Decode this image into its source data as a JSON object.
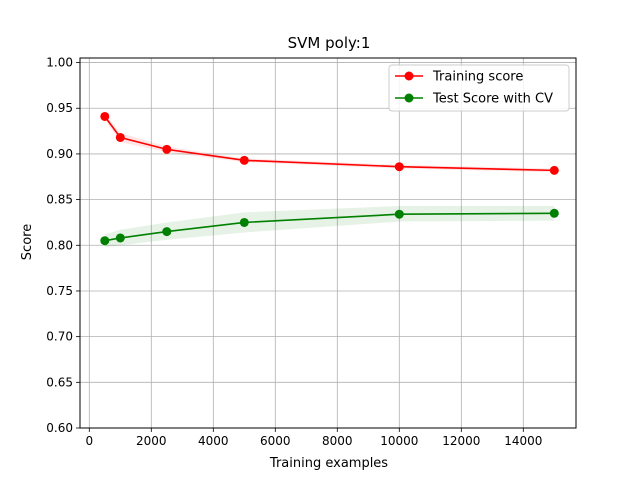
{
  "chart_data": {
    "type": "line",
    "title": "SVM poly:1",
    "xlabel": "Training examples",
    "ylabel": "Score",
    "xlim": [
      -300,
      15700
    ],
    "ylim": [
      0.6,
      1.005
    ],
    "xticks": [
      0,
      2000,
      4000,
      6000,
      8000,
      10000,
      12000,
      14000
    ],
    "yticks": [
      0.6,
      0.65,
      0.7,
      0.75,
      0.8,
      0.85,
      0.9,
      0.95,
      1.0
    ],
    "xtick_labels": [
      "0",
      "2000",
      "4000",
      "6000",
      "8000",
      "10000",
      "12000",
      "14000"
    ],
    "ytick_labels": [
      "0.60",
      "0.65",
      "0.70",
      "0.75",
      "0.80",
      "0.85",
      "0.90",
      "0.95",
      "1.00"
    ],
    "grid": true,
    "legend_position": "top-right",
    "x": [
      500,
      1000,
      2500,
      5000,
      10000,
      15000
    ],
    "series": [
      {
        "name": "Training score",
        "color": "#ff0000",
        "values": [
          0.941,
          0.918,
          0.905,
          0.893,
          0.886,
          0.882
        ],
        "band_lower": [
          0.938,
          0.913,
          0.902,
          0.891,
          0.884,
          0.88
        ],
        "band_upper": [
          0.944,
          0.923,
          0.908,
          0.895,
          0.888,
          0.884
        ]
      },
      {
        "name": "Test Score with CV",
        "color": "#008000",
        "values": [
          0.805,
          0.808,
          0.815,
          0.825,
          0.834,
          0.835
        ],
        "band_lower": [
          0.798,
          0.8,
          0.806,
          0.814,
          0.826,
          0.827
        ],
        "band_upper": [
          0.812,
          0.817,
          0.825,
          0.836,
          0.843,
          0.843
        ]
      }
    ]
  }
}
